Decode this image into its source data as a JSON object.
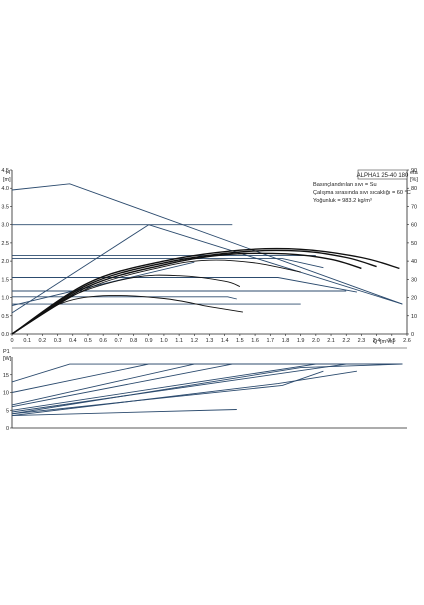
{
  "chart_data": [
    {
      "type": "line",
      "title": "ALPHA1 25-40 180",
      "info_lines": [
        "Basınçlandırılan sıvı = Su",
        "Çalışma sırasında sıvı sıcaklığı = 60 °C",
        "Yoğunluk = 983.2 kg/m³"
      ],
      "ylabel_left": "H",
      "ylabel_left_unit": "[m]",
      "ylabel_right": "eta",
      "ylabel_right_unit": "[%]",
      "xlabel": "Q",
      "xlabel_unit": "[m³/h]",
      "xlim": [
        0,
        2.6
      ],
      "ylim": [
        0,
        4.5
      ],
      "y2lim": [
        0,
        90
      ],
      "x_ticks": [
        "0",
        "0.1",
        "0.2",
        "0.3",
        "0.4",
        "0.5",
        "0.6",
        "0.7",
        "0.8",
        "0.9",
        "1.0",
        "1.1",
        "1.2",
        "1.3",
        "1.4",
        "1.5",
        "1.6",
        "1.7",
        "1.8",
        "1.9",
        "2.0",
        "2.1",
        "2.2",
        "2.3",
        "2.4",
        "2.5",
        "2.6"
      ],
      "y_ticks": [
        "0.0",
        "0.5",
        "1.0",
        "1.5",
        "2.0",
        "2.5",
        "3.0",
        "3.5",
        "4.0",
        "4.5"
      ],
      "y2_ticks": [
        "0",
        "10",
        "20",
        "30",
        "40",
        "50",
        "60",
        "70",
        "80",
        "90"
      ],
      "grid": false,
      "head_series": [
        {
          "x": [
            0,
            0.38,
            2.57
          ],
          "y": [
            3.95,
            4.12,
            0.82
          ]
        },
        {
          "x": [
            0,
            1.45
          ],
          "y": [
            3.0,
            3.0
          ]
        },
        {
          "x": [
            0.9,
            2.57
          ],
          "y": [
            3.0,
            0.82
          ]
        },
        {
          "x": [
            0,
            1.78,
            2.05
          ],
          "y": [
            2.07,
            2.07,
            1.82
          ]
        },
        {
          "x": [
            0,
            1.75,
            2.27
          ],
          "y": [
            1.55,
            1.55,
            1.15
          ]
        },
        {
          "x": [
            0,
            1.42,
            1.48
          ],
          "y": [
            1.02,
            1.02,
            0.96
          ]
        },
        {
          "x": [
            0,
            0.9
          ],
          "y": [
            0.58,
            3.0
          ]
        },
        {
          "x": [
            0,
            2.0
          ],
          "y": [
            2.15,
            2.15
          ]
        },
        {
          "x": [
            0,
            1.2
          ],
          "y": [
            0.78,
            1.97
          ]
        },
        {
          "x": [
            0,
            2.2
          ],
          "y": [
            1.18,
            1.18
          ]
        },
        {
          "x": [
            0,
            1.9
          ],
          "y": [
            0.82,
            0.82
          ]
        }
      ],
      "eta_series": [
        {
          "x": [
            0,
            0.5,
            1.0,
            1.5,
            1.9,
            2.3,
            2.55
          ],
          "y": [
            0,
            28,
            40,
            46,
            46.5,
            42,
            36
          ]
        },
        {
          "x": [
            0,
            0.5,
            1.0,
            1.5,
            1.9,
            2.2,
            2.4
          ],
          "y": [
            0,
            27,
            39,
            45,
            45.5,
            42,
            37
          ]
        },
        {
          "x": [
            0,
            0.5,
            1.0,
            1.4,
            1.8,
            2.1,
            2.3
          ],
          "y": [
            0,
            26,
            38,
            43.5,
            44,
            41,
            36
          ]
        },
        {
          "x": [
            0,
            0.5,
            1.0,
            1.3,
            1.6,
            1.9
          ],
          "y": [
            0,
            25,
            37,
            40.5,
            39,
            34
          ]
        },
        {
          "x": [
            0,
            0.4,
            0.8,
            1.1,
            1.4,
            1.5
          ],
          "y": [
            0,
            21,
            31,
            32,
            29,
            26
          ]
        },
        {
          "x": [
            0,
            0.3,
            0.6,
            1.0,
            1.3,
            1.52
          ],
          "y": [
            0,
            16,
            21,
            19.5,
            15,
            12
          ]
        }
      ]
    },
    {
      "type": "line",
      "ylabel": "P1",
      "ylabel_unit": "[W]",
      "xlim": [
        0,
        2.6
      ],
      "ylim": [
        0,
        20
      ],
      "y_ticks": [
        "0",
        "5",
        "10",
        "15"
      ],
      "grid": false,
      "series": [
        {
          "x": [
            0,
            0.38,
            2.57
          ],
          "y": [
            13.0,
            18.0,
            18.0
          ]
        },
        {
          "x": [
            0,
            0.9,
            2.57
          ],
          "y": [
            10.0,
            18.0,
            18.0
          ]
        },
        {
          "x": [
            0,
            1.2,
            2.57
          ],
          "y": [
            6.5,
            18.0,
            18.0
          ]
        },
        {
          "x": [
            0,
            1.78,
            2.05
          ],
          "y": [
            4.0,
            12.0,
            16.0
          ]
        },
        {
          "x": [
            0,
            1.75,
            2.27
          ],
          "y": [
            3.5,
            12.5,
            16.0
          ]
        },
        {
          "x": [
            0,
            1.48
          ],
          "y": [
            3.5,
            5.2
          ]
        },
        {
          "x": [
            0,
            1.45,
            2.57
          ],
          "y": [
            6.0,
            18.0,
            18.0
          ]
        },
        {
          "x": [
            0,
            2.0,
            2.57
          ],
          "y": [
            5.0,
            18.0,
            18.0
          ]
        },
        {
          "x": [
            0,
            2.2,
            2.57
          ],
          "y": [
            4.5,
            18.0,
            18.0
          ]
        },
        {
          "x": [
            0,
            1.9,
            2.57
          ],
          "y": [
            4.0,
            17.0,
            18.0
          ]
        }
      ]
    }
  ],
  "colors": {
    "head_line": "#2c4b6e",
    "eta_line": "#111111",
    "axis": "#222222",
    "frame": "#444444"
  }
}
